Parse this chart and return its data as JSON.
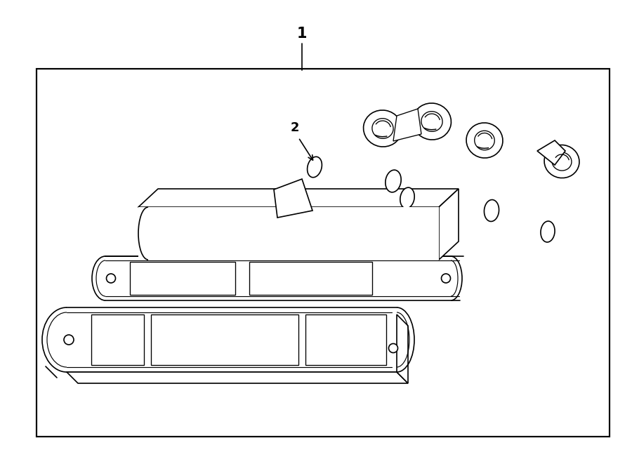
{
  "background_color": "#ffffff",
  "line_color": "#000000",
  "lw": 1.2,
  "fig_width": 9.0,
  "fig_height": 6.61,
  "label1_text": "1",
  "label2_text": "2"
}
